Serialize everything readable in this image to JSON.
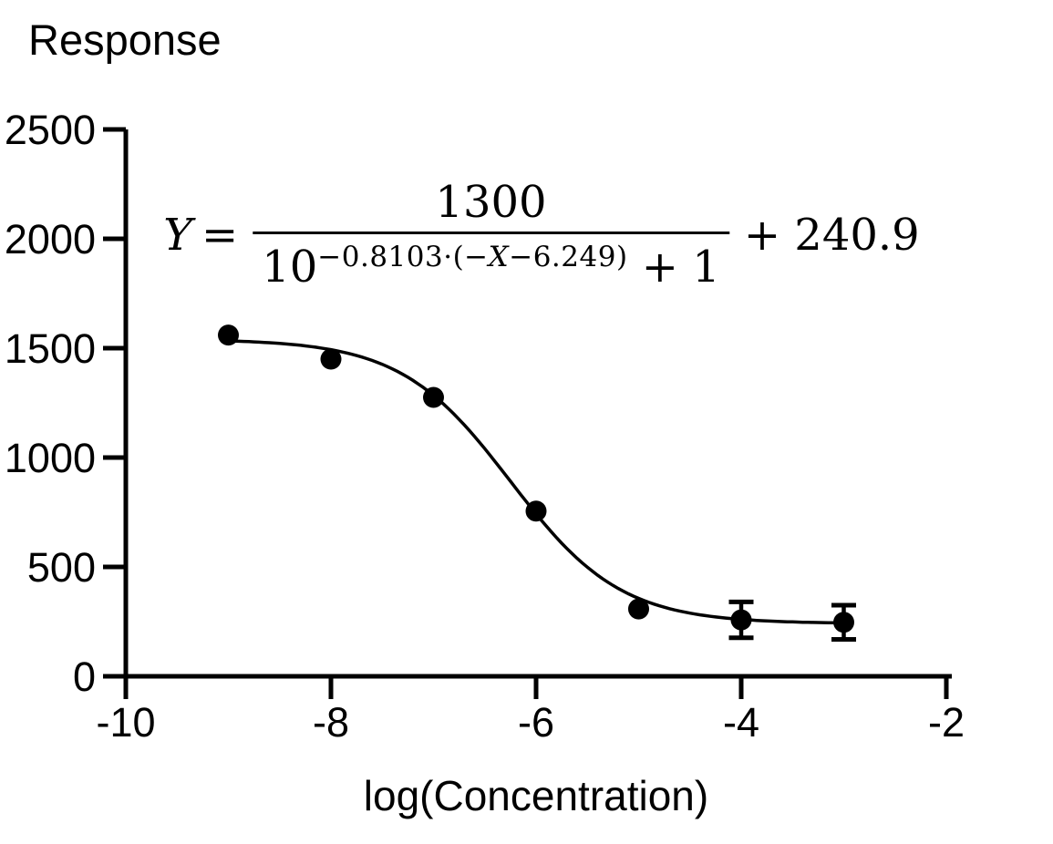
{
  "colors": {
    "foreground": "#000000",
    "background": "#ffffff"
  },
  "chart_data": {
    "type": "scatter",
    "title": "Response",
    "xlabel": "log(Concentration)",
    "ylabel": "Response",
    "xlim": [
      -10,
      -2
    ],
    "ylim": [
      0,
      2500
    ],
    "x_ticks": [
      -10,
      -8,
      -6,
      -4,
      -2
    ],
    "y_ticks": [
      0,
      500,
      1000,
      1500,
      2000,
      2500
    ],
    "grid": false,
    "legend": false,
    "marker_color": "#000000",
    "curve_color": "#000000",
    "points": [
      {
        "x": -9,
        "y": 1560,
        "err": 0
      },
      {
        "x": -8,
        "y": 1450,
        "err": 0
      },
      {
        "x": -7,
        "y": 1275,
        "err": 0
      },
      {
        "x": -6,
        "y": 755,
        "err": 0
      },
      {
        "x": -5,
        "y": 308,
        "err": 0
      },
      {
        "x": -4,
        "y": 258,
        "err": 82
      },
      {
        "x": -3,
        "y": 247,
        "err": 78
      }
    ],
    "fit": {
      "type": "sigmoidal-dose-response",
      "span": 1300,
      "hill": 0.8103,
      "inflection": 6.249,
      "bottom": 240.9,
      "x_range": [
        -9,
        -3
      ]
    }
  },
  "equation": {
    "lhs_var": "Y",
    "equals": "=",
    "numerator": "1300",
    "denom_base": "10",
    "exp_pre": "−0.8103·(−",
    "exp_var": "X",
    "exp_post": "−6.249)",
    "denom_tail": " + 1",
    "suffix": "+ 240.9"
  }
}
